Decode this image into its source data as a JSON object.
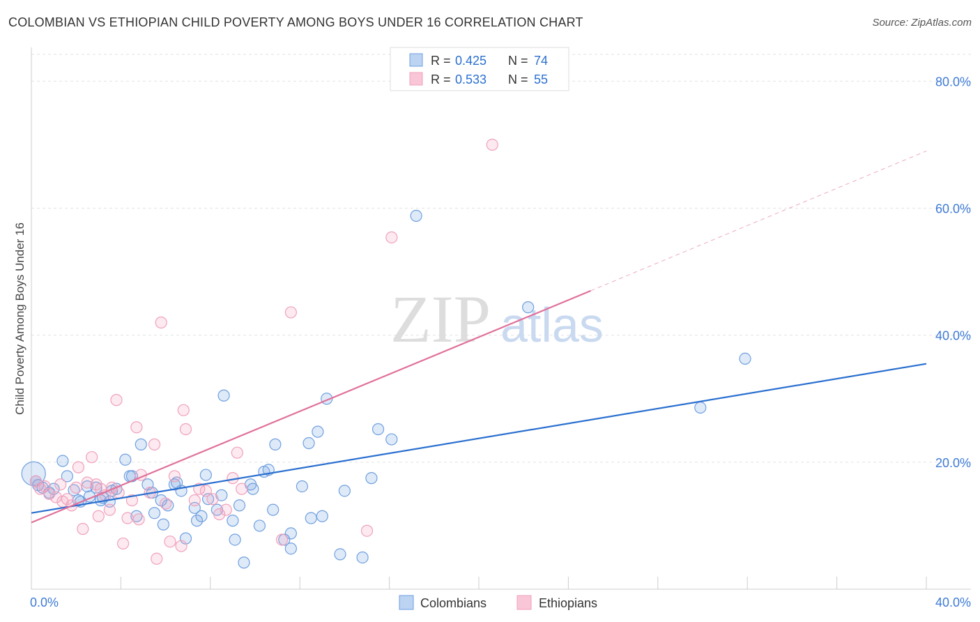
{
  "header": {
    "title": "COLOMBIAN VS ETHIOPIAN CHILD POVERTY AMONG BOYS UNDER 16 CORRELATION CHART",
    "source": "Source: ZipAtlas.com"
  },
  "watermark": {
    "zip": "ZIP",
    "atlas": "atlas"
  },
  "chart_data": {
    "type": "scatter",
    "title": "COLOMBIAN VS ETHIOPIAN CHILD POVERTY AMONG BOYS UNDER 16 CORRELATION CHART",
    "xlabel": "",
    "ylabel": "Child Poverty Among Boys Under 16",
    "xlim": [
      0,
      40
    ],
    "ylim": [
      0,
      84
    ],
    "x_tick_labels": [
      "0.0%",
      "40.0%"
    ],
    "y_ticks": [
      20,
      40,
      60,
      80
    ],
    "y_tick_labels": [
      "20.0%",
      "40.0%",
      "60.0%",
      "80.0%"
    ],
    "grid": true,
    "legend_position": "top-center",
    "bottom_legend": [
      "Colombians",
      "Ethiopians"
    ],
    "stats": [
      {
        "r_label": "R =",
        "r_value": "0.425",
        "n_label": "N =",
        "n_value": "74"
      },
      {
        "r_label": "R =",
        "r_value": "0.533",
        "n_label": "N =",
        "n_value": "55"
      }
    ],
    "series": [
      {
        "name": "Colombians",
        "color": "#6f9fe0",
        "line_color": "#2a6fd0",
        "trend": {
          "x": [
            0,
            40
          ],
          "y": [
            12.0,
            35.5
          ],
          "dashed_to": null
        },
        "points": [
          [
            0.1,
            18.2
          ],
          [
            0.2,
            17.0
          ],
          [
            0.3,
            16.4
          ],
          [
            0.5,
            16.0
          ],
          [
            0.8,
            15.2
          ],
          [
            1.0,
            15.8
          ],
          [
            1.4,
            20.2
          ],
          [
            1.6,
            17.8
          ],
          [
            1.9,
            15.6
          ],
          [
            2.1,
            14.0
          ],
          [
            2.2,
            13.8
          ],
          [
            2.5,
            16.2
          ],
          [
            2.6,
            14.6
          ],
          [
            2.9,
            16.0
          ],
          [
            3.1,
            14.0
          ],
          [
            3.2,
            14.4
          ],
          [
            3.5,
            13.8
          ],
          [
            3.6,
            15.5
          ],
          [
            3.8,
            15.8
          ],
          [
            4.2,
            20.4
          ],
          [
            4.4,
            17.8
          ],
          [
            4.5,
            17.8
          ],
          [
            4.7,
            11.5
          ],
          [
            4.9,
            22.8
          ],
          [
            5.2,
            16.5
          ],
          [
            5.4,
            15.2
          ],
          [
            5.5,
            12.0
          ],
          [
            5.8,
            14.0
          ],
          [
            5.9,
            10.2
          ],
          [
            6.1,
            13.2
          ],
          [
            6.4,
            16.5
          ],
          [
            6.5,
            16.8
          ],
          [
            6.7,
            15.5
          ],
          [
            6.9,
            8.0
          ],
          [
            7.3,
            12.8
          ],
          [
            7.4,
            10.8
          ],
          [
            7.6,
            11.5
          ],
          [
            7.8,
            18.0
          ],
          [
            7.9,
            14.2
          ],
          [
            8.3,
            12.5
          ],
          [
            8.5,
            14.8
          ],
          [
            8.6,
            30.5
          ],
          [
            9.0,
            10.8
          ],
          [
            9.1,
            7.8
          ],
          [
            9.3,
            13.2
          ],
          [
            9.5,
            4.2
          ],
          [
            9.8,
            16.5
          ],
          [
            9.9,
            15.8
          ],
          [
            10.2,
            10.0
          ],
          [
            10.4,
            18.5
          ],
          [
            10.6,
            18.8
          ],
          [
            10.8,
            12.5
          ],
          [
            10.9,
            22.8
          ],
          [
            11.3,
            7.8
          ],
          [
            11.6,
            8.8
          ],
          [
            11.6,
            6.4
          ],
          [
            12.1,
            16.2
          ],
          [
            12.4,
            23.0
          ],
          [
            12.5,
            11.2
          ],
          [
            12.8,
            24.8
          ],
          [
            13.0,
            11.5
          ],
          [
            13.2,
            30.0
          ],
          [
            13.8,
            5.5
          ],
          [
            14.0,
            15.5
          ],
          [
            14.8,
            5.0
          ],
          [
            15.2,
            17.5
          ],
          [
            15.5,
            25.2
          ],
          [
            16.1,
            23.6
          ],
          [
            17.2,
            58.8
          ],
          [
            22.2,
            44.4
          ],
          [
            29.9,
            28.6
          ],
          [
            31.9,
            36.3
          ]
        ]
      },
      {
        "name": "Ethiopians",
        "color": "#f0a0bc",
        "line_color": "#e0709a",
        "trend": {
          "x": [
            0,
            25
          ],
          "y": [
            10.5,
            47.0
          ],
          "dashed_to": [
            40,
            69.0
          ]
        },
        "points": [
          [
            0.2,
            17.0
          ],
          [
            0.4,
            15.8
          ],
          [
            0.6,
            16.2
          ],
          [
            0.8,
            15.0
          ],
          [
            1.1,
            14.5
          ],
          [
            1.3,
            16.5
          ],
          [
            1.4,
            13.8
          ],
          [
            1.6,
            14.2
          ],
          [
            1.8,
            13.2
          ],
          [
            2.0,
            16.0
          ],
          [
            2.1,
            19.2
          ],
          [
            2.3,
            9.5
          ],
          [
            2.5,
            16.8
          ],
          [
            2.7,
            20.8
          ],
          [
            2.9,
            16.5
          ],
          [
            3.0,
            11.5
          ],
          [
            3.1,
            15.8
          ],
          [
            3.3,
            14.8
          ],
          [
            3.5,
            12.5
          ],
          [
            3.6,
            16.0
          ],
          [
            3.8,
            29.8
          ],
          [
            3.9,
            15.2
          ],
          [
            4.1,
            7.2
          ],
          [
            4.3,
            11.2
          ],
          [
            4.5,
            14.0
          ],
          [
            4.7,
            25.5
          ],
          [
            4.8,
            11.0
          ],
          [
            4.9,
            18.0
          ],
          [
            5.3,
            15.2
          ],
          [
            5.5,
            22.8
          ],
          [
            5.6,
            4.8
          ],
          [
            5.8,
            42.0
          ],
          [
            6.0,
            13.5
          ],
          [
            6.2,
            7.5
          ],
          [
            6.4,
            17.8
          ],
          [
            6.7,
            6.8
          ],
          [
            6.8,
            28.2
          ],
          [
            6.9,
            25.2
          ],
          [
            7.3,
            14.0
          ],
          [
            7.5,
            15.8
          ],
          [
            7.8,
            15.5
          ],
          [
            8.1,
            14.2
          ],
          [
            8.4,
            11.8
          ],
          [
            8.7,
            12.5
          ],
          [
            9.0,
            17.5
          ],
          [
            9.2,
            21.5
          ],
          [
            9.4,
            15.8
          ],
          [
            11.2,
            7.8
          ],
          [
            11.6,
            43.6
          ],
          [
            15.0,
            9.2
          ],
          [
            16.1,
            55.4
          ],
          [
            20.6,
            70.0
          ]
        ]
      }
    ]
  }
}
